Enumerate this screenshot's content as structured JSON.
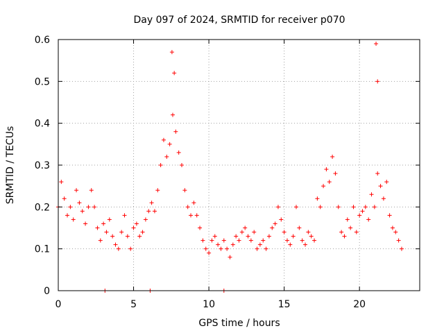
{
  "chart_data": {
    "type": "scatter",
    "title": "Day 097 of 2024, SRMTID for receiver p070",
    "xlabel": "GPS time / hours",
    "ylabel": "SRMTID / TECUs",
    "xlim": [
      0,
      24
    ],
    "ylim": [
      0,
      0.6
    ],
    "x_ticks": [
      0,
      5,
      10,
      15,
      20
    ],
    "x_tick_labels": [
      "0",
      "5",
      "10",
      "15",
      "20"
    ],
    "y_ticks": [
      0,
      0.1,
      0.2,
      0.3,
      0.4,
      0.5,
      0.6
    ],
    "y_tick_labels": [
      "0",
      "0.1",
      "0.2",
      "0.3",
      "0.4",
      "0.5",
      "0.6"
    ],
    "grid": true,
    "marker": "+",
    "marker_color": "#ff0000",
    "series": [
      {
        "name": "SRMTID",
        "x": [
          0.0,
          0.2,
          0.4,
          0.6,
          0.8,
          1.0,
          1.2,
          1.4,
          1.6,
          1.8,
          2.0,
          2.2,
          2.4,
          2.6,
          2.8,
          3.0,
          3.2,
          3.4,
          3.6,
          3.8,
          4.0,
          4.2,
          4.4,
          4.6,
          4.8,
          5.0,
          5.2,
          5.4,
          5.6,
          5.8,
          6.0,
          6.2,
          6.4,
          6.6,
          6.8,
          7.0,
          7.2,
          7.4,
          7.6,
          7.8,
          8.0,
          8.2,
          8.4,
          8.6,
          8.8,
          9.0,
          9.2,
          9.4,
          9.6,
          9.8,
          10.0,
          10.2,
          10.4,
          10.6,
          10.8,
          11.0,
          11.2,
          11.4,
          11.6,
          11.8,
          12.0,
          12.2,
          12.4,
          12.6,
          12.8,
          13.0,
          13.2,
          13.4,
          13.6,
          13.8,
          14.0,
          14.2,
          14.4,
          14.6,
          14.8,
          15.0,
          15.2,
          15.4,
          15.6,
          15.8,
          16.0,
          16.2,
          16.4,
          16.6,
          16.8,
          17.0,
          17.2,
          17.4,
          17.6,
          17.8,
          18.0,
          18.2,
          18.4,
          18.6,
          18.8,
          19.0,
          19.2,
          19.4,
          19.6,
          19.8,
          20.0,
          20.2,
          20.4,
          20.6,
          20.8,
          21.0,
          21.2,
          21.4,
          21.6,
          21.8,
          22.0,
          22.2,
          22.4,
          22.6,
          22.8,
          3.1,
          6.1,
          11.0,
          7.55,
          7.7,
          21.1,
          21.2
        ],
        "y": [
          0.2,
          0.26,
          0.22,
          0.18,
          0.2,
          0.17,
          0.24,
          0.21,
          0.19,
          0.16,
          0.2,
          0.24,
          0.2,
          0.15,
          0.12,
          0.16,
          0.14,
          0.17,
          0.13,
          0.11,
          0.1,
          0.14,
          0.18,
          0.13,
          0.1,
          0.15,
          0.16,
          0.13,
          0.14,
          0.17,
          0.19,
          0.21,
          0.19,
          0.24,
          0.3,
          0.36,
          0.32,
          0.35,
          0.42,
          0.38,
          0.33,
          0.3,
          0.24,
          0.2,
          0.18,
          0.21,
          0.18,
          0.15,
          0.12,
          0.1,
          0.09,
          0.12,
          0.13,
          0.11,
          0.1,
          0.12,
          0.1,
          0.08,
          0.11,
          0.13,
          0.12,
          0.14,
          0.15,
          0.13,
          0.12,
          0.14,
          0.1,
          0.11,
          0.12,
          0.1,
          0.13,
          0.15,
          0.16,
          0.2,
          0.17,
          0.14,
          0.12,
          0.11,
          0.13,
          0.2,
          0.15,
          0.12,
          0.11,
          0.14,
          0.13,
          0.12,
          0.22,
          0.2,
          0.25,
          0.29,
          0.26,
          0.32,
          0.28,
          0.2,
          0.14,
          0.13,
          0.17,
          0.15,
          0.2,
          0.14,
          0.18,
          0.19,
          0.2,
          0.17,
          0.23,
          0.2,
          0.28,
          0.25,
          0.22,
          0.26,
          0.18,
          0.15,
          0.14,
          0.12,
          0.1,
          0.0,
          0.0,
          0.0,
          0.57,
          0.52,
          0.59,
          0.5
        ]
      }
    ]
  }
}
